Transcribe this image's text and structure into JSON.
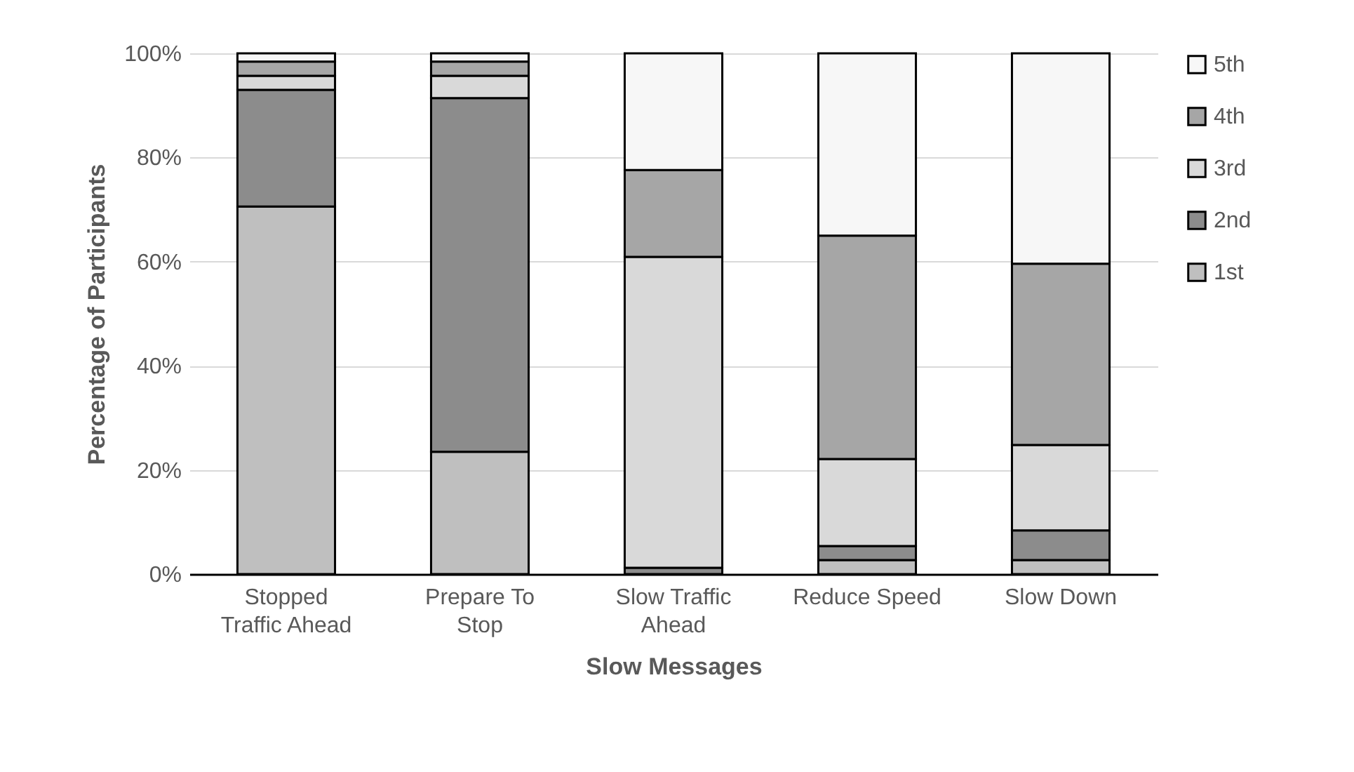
{
  "chart_data": {
    "type": "bar",
    "stacked": true,
    "xlabel": "Slow Messages",
    "ylabel": "Percentage of Participants",
    "categories": [
      "Stopped Traffic Ahead",
      "Prepare To Stop",
      "Slow Traffic Ahead",
      "Reduce Speed",
      "Slow Down"
    ],
    "series": [
      {
        "name": "1st",
        "color": "#bfbfbf",
        "values": [
          70.6,
          23.5,
          0,
          2.7,
          2.7
        ]
      },
      {
        "name": "2nd",
        "color": "#8c8c8c",
        "values": [
          22.4,
          67.9,
          1.2,
          2.7,
          5.7
        ]
      },
      {
        "name": "3rd",
        "color": "#d9d9d9",
        "values": [
          2.7,
          4.3,
          59.7,
          16.7,
          16.4
        ]
      },
      {
        "name": "4th",
        "color": "#a6a6a6",
        "values": [
          2.7,
          2.7,
          16.7,
          42.9,
          34.8
        ]
      },
      {
        "name": "5th",
        "color": "#f7f7f7",
        "values": [
          1.6,
          1.6,
          22.4,
          35.0,
          40.4
        ]
      }
    ],
    "ylim": [
      0,
      100
    ],
    "yticks": [
      {
        "value": 0,
        "label": "0%"
      },
      {
        "value": 20,
        "label": "20%"
      },
      {
        "value": 40,
        "label": "40%"
      },
      {
        "value": 60,
        "label": "60%"
      },
      {
        "value": 80,
        "label": "80%"
      },
      {
        "value": 100,
        "label": "100%"
      }
    ],
    "grid": "y",
    "legend": "right"
  }
}
